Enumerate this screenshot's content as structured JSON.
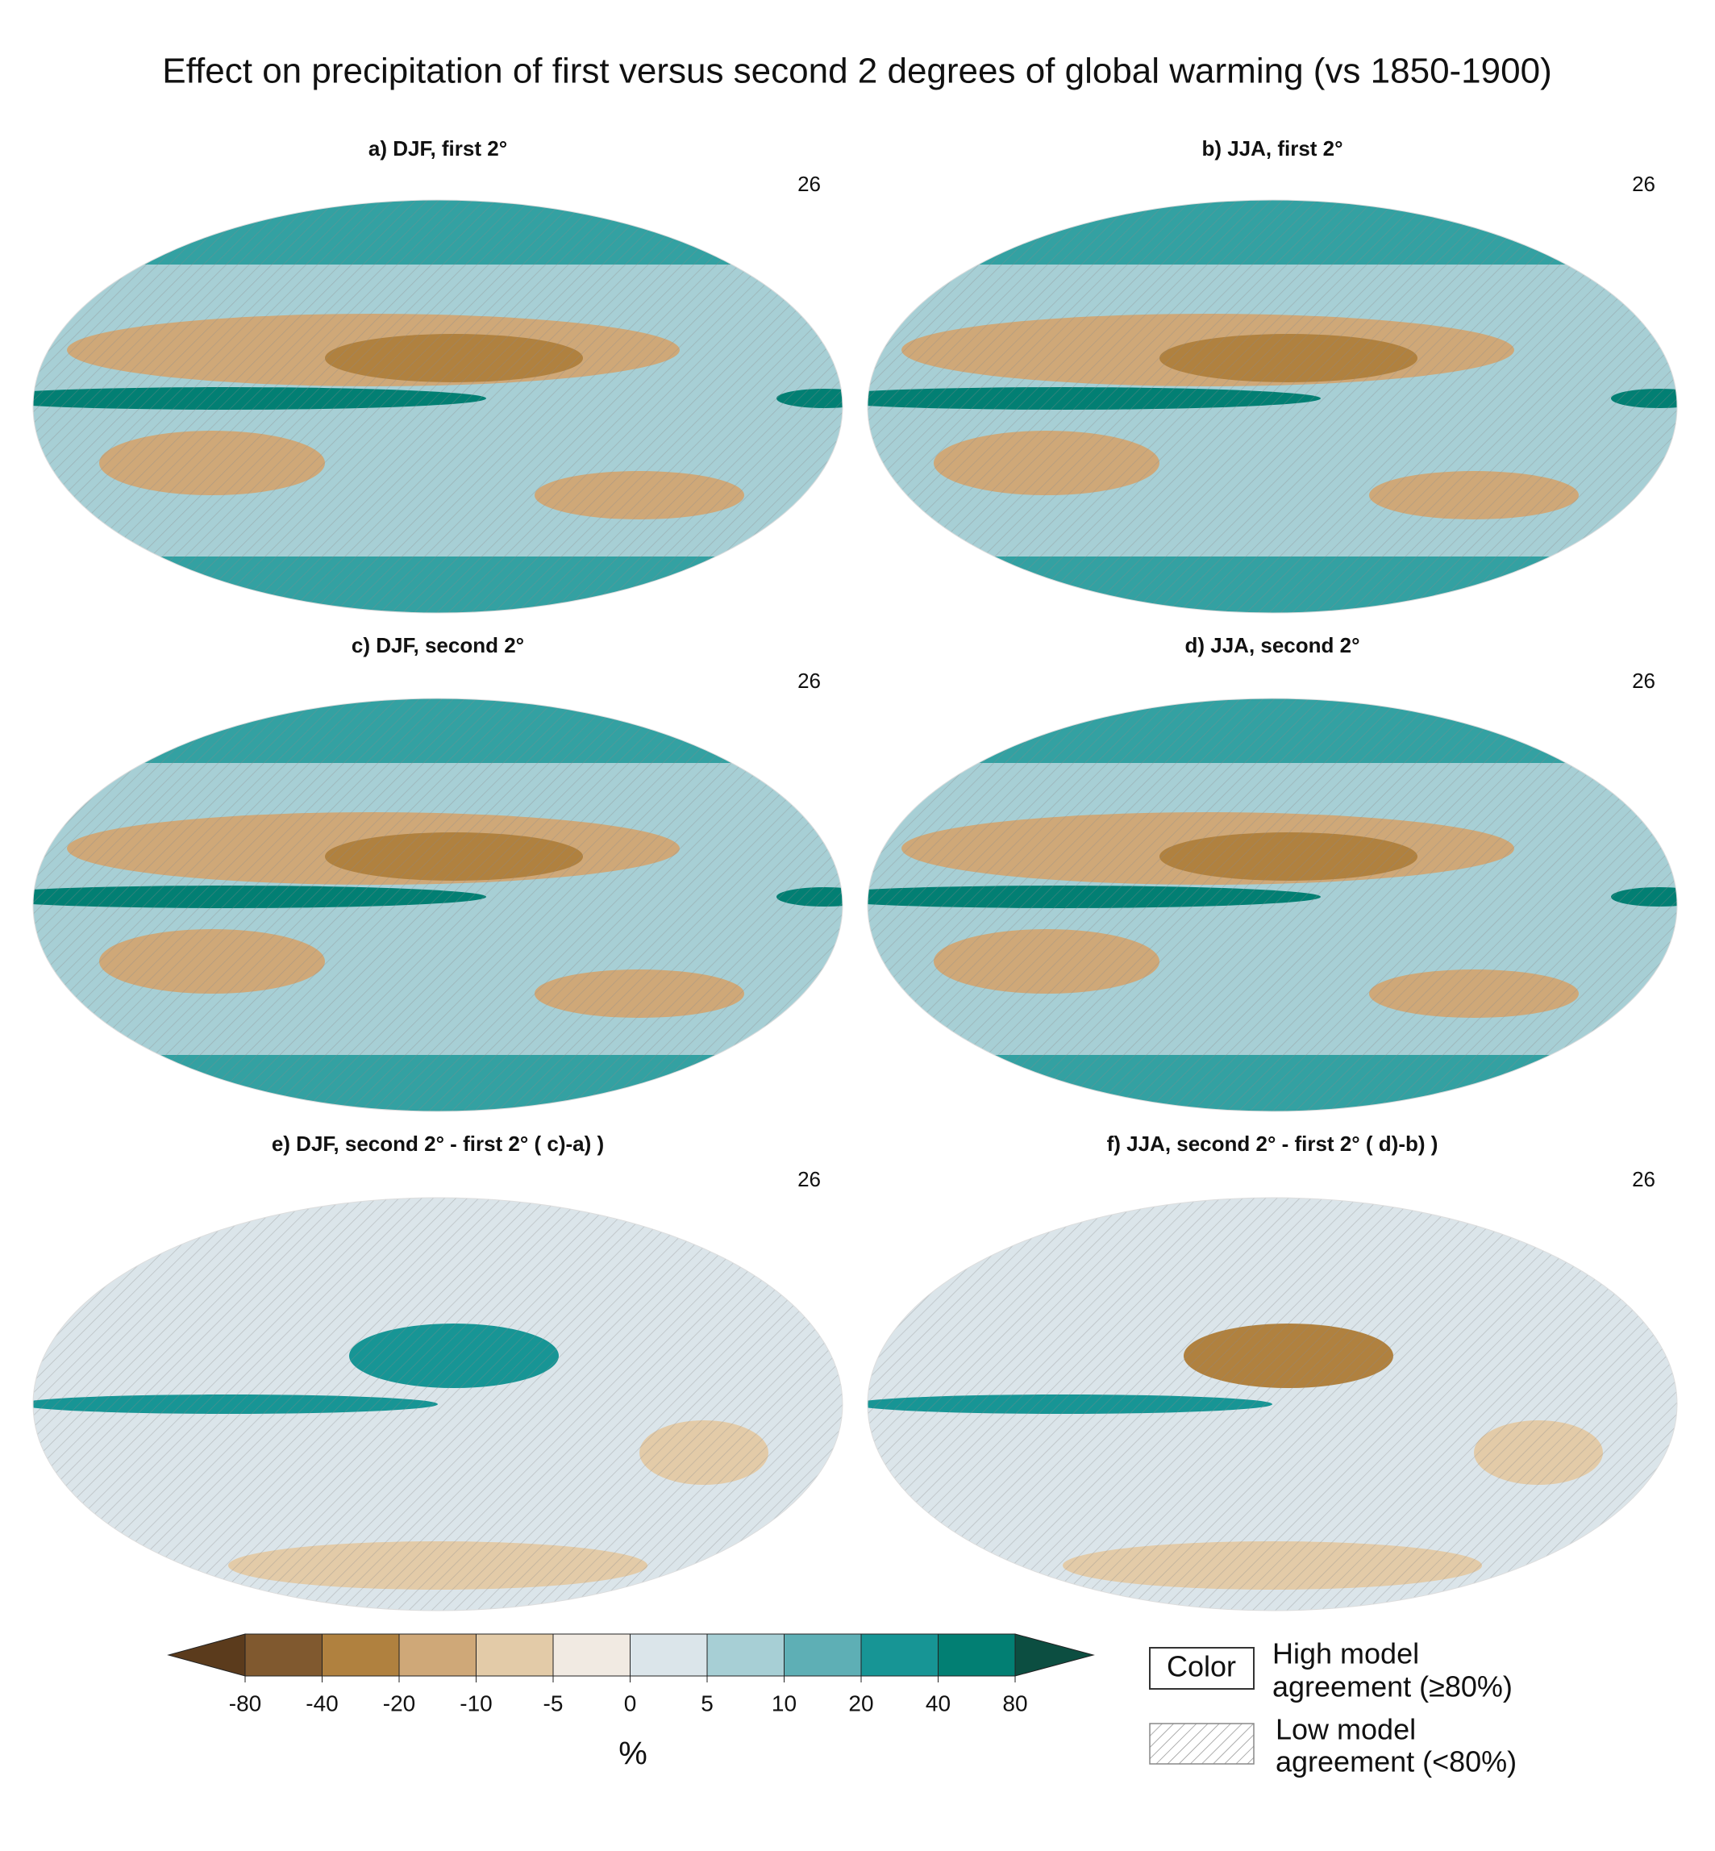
{
  "title": "Effect on precipitation of first versus second 2 degrees of global warming (vs 1850-1900)",
  "panels": [
    {
      "label": "a) DJF, first 2°",
      "models": 26
    },
    {
      "label": "b) JJA, first 2°",
      "models": 26
    },
    {
      "label": "c) DJF, second 2°",
      "models": 26
    },
    {
      "label": "d) JJA, second 2°",
      "models": 26
    },
    {
      "label": "e)  DJF, second 2° - first 2° ( c)-a) )",
      "models": 26
    },
    {
      "label": "f)  JJA, second 2° - first 2° ( d)-b) )",
      "models": 26
    }
  ],
  "colorbar": {
    "ticks": [
      -80,
      -40,
      -20,
      -10,
      -5,
      0,
      5,
      10,
      20,
      40,
      80
    ],
    "colors": [
      "#5b3b1c",
      "#80592f",
      "#b0813f",
      "#cfa878",
      "#e3cba8",
      "#f1eae2",
      "#dbe5ea",
      "#a7cfd5",
      "#5eafb5",
      "#179595",
      "#027f73",
      "#0c4e41"
    ],
    "unit": "%"
  },
  "legend": {
    "color_box": "Color",
    "high": [
      "High model",
      "agreement (≥80%)"
    ],
    "low": [
      "Low model",
      "agreement (<80%)"
    ]
  }
}
